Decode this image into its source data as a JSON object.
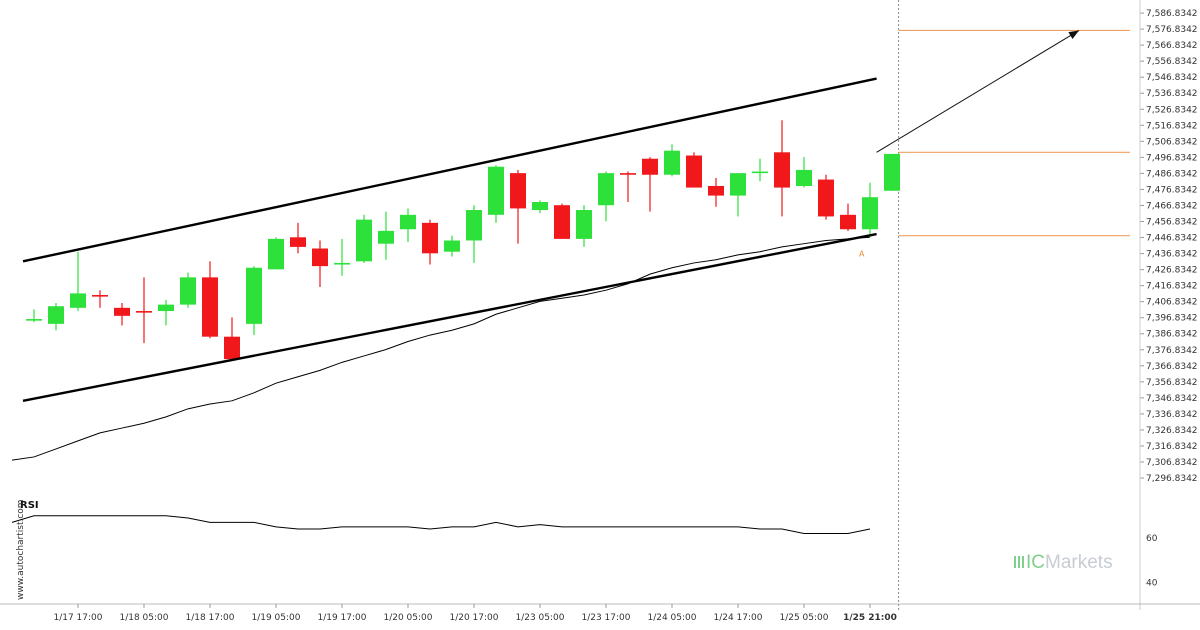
{
  "chart_data": [
    {
      "type": "candlestick",
      "y_ticks": [
        "7,586.8342",
        "7,576.8342",
        "7,566.8342",
        "7,556.8342",
        "7,546.8342",
        "7,536.8342",
        "7,526.8342",
        "7,516.8342",
        "7,506.8342",
        "7,496.8342",
        "7,486.8342",
        "7,476.8342",
        "7,466.8342",
        "7,456.8342",
        "7,446.8342",
        "7,436.8342",
        "7,426.8342",
        "7,416.8342",
        "7,406.8342",
        "7,396.8342",
        "7,386.8342",
        "7,376.8342",
        "7,366.8342",
        "7,356.8342",
        "7,346.8342",
        "7,336.8342",
        "7,326.8342",
        "7,316.8342",
        "7,306.8342",
        "7,296.8342"
      ],
      "ylim": [
        7290,
        7590
      ],
      "x_ticks": [
        {
          "label": "1/17 17:00",
          "i": 2
        },
        {
          "label": "1/18 05:00",
          "i": 5
        },
        {
          "label": "1/18 17:00",
          "i": 8
        },
        {
          "label": "1/19 05:00",
          "i": 11
        },
        {
          "label": "1/19 17:00",
          "i": 14
        },
        {
          "label": "1/20 05:00",
          "i": 17
        },
        {
          "label": "1/20 17:00",
          "i": 20
        },
        {
          "label": "1/23 05:00",
          "i": 23
        },
        {
          "label": "1/23 17:00",
          "i": 26
        },
        {
          "label": "1/24 05:00",
          "i": 29
        },
        {
          "label": "1/24 17:00",
          "i": 32
        },
        {
          "label": "1/25 05:00",
          "i": 35
        },
        {
          "label": "1/25 21:00",
          "i": 38
        }
      ],
      "candles": [
        {
          "o": 7395,
          "h": 7402,
          "l": 7394,
          "c": 7396
        },
        {
          "o": 7393,
          "h": 7406,
          "l": 7389,
          "c": 7404
        },
        {
          "o": 7403,
          "h": 7438,
          "l": 7401,
          "c": 7412
        },
        {
          "o": 7411,
          "h": 7414,
          "l": 7403,
          "c": 7410
        },
        {
          "o": 7403,
          "h": 7406,
          "l": 7392,
          "c": 7398
        },
        {
          "o": 7401,
          "h": 7422,
          "l": 7381,
          "c": 7400
        },
        {
          "o": 7401,
          "h": 7408,
          "l": 7392,
          "c": 7405
        },
        {
          "o": 7405,
          "h": 7425,
          "l": 7403,
          "c": 7422
        },
        {
          "o": 7422,
          "h": 7432,
          "l": 7384,
          "c": 7385
        },
        {
          "o": 7385,
          "h": 7397,
          "l": 7370,
          "c": 7371
        },
        {
          "o": 7393,
          "h": 7429,
          "l": 7386,
          "c": 7428
        },
        {
          "o": 7427,
          "h": 7447,
          "l": 7427,
          "c": 7446
        },
        {
          "o": 7447,
          "h": 7456,
          "l": 7437,
          "c": 7441
        },
        {
          "o": 7440,
          "h": 7445,
          "l": 7416,
          "c": 7429
        },
        {
          "o": 7430,
          "h": 7446,
          "l": 7423,
          "c": 7431
        },
        {
          "o": 7432,
          "h": 7461,
          "l": 7431,
          "c": 7458
        },
        {
          "o": 7443,
          "h": 7463,
          "l": 7433,
          "c": 7451
        },
        {
          "o": 7452,
          "h": 7465,
          "l": 7444,
          "c": 7461
        },
        {
          "o": 7456,
          "h": 7458,
          "l": 7430,
          "c": 7437
        },
        {
          "o": 7438,
          "h": 7448,
          "l": 7435,
          "c": 7445
        },
        {
          "o": 7445,
          "h": 7467,
          "l": 7431,
          "c": 7464
        },
        {
          "o": 7461,
          "h": 7492,
          "l": 7456,
          "c": 7491
        },
        {
          "o": 7487,
          "h": 7489,
          "l": 7443,
          "c": 7465
        },
        {
          "o": 7464,
          "h": 7470,
          "l": 7462,
          "c": 7469
        },
        {
          "o": 7467,
          "h": 7468,
          "l": 7446,
          "c": 7446
        },
        {
          "o": 7446,
          "h": 7467,
          "l": 7441,
          "c": 7464
        },
        {
          "o": 7467,
          "h": 7488,
          "l": 7457,
          "c": 7487
        },
        {
          "o": 7487,
          "h": 7488,
          "l": 7469,
          "c": 7486
        },
        {
          "o": 7496,
          "h": 7497,
          "l": 7463,
          "c": 7486
        },
        {
          "o": 7486,
          "h": 7505,
          "l": 7485,
          "c": 7501
        },
        {
          "o": 7498,
          "h": 7500,
          "l": 7478,
          "c": 7478
        },
        {
          "o": 7479,
          "h": 7484,
          "l": 7466,
          "c": 7473
        },
        {
          "o": 7473,
          "h": 7487,
          "l": 7460,
          "c": 7487
        },
        {
          "o": 7487,
          "h": 7496,
          "l": 7482,
          "c": 7488
        },
        {
          "o": 7500,
          "h": 7520,
          "l": 7460,
          "c": 7478
        },
        {
          "o": 7479,
          "h": 7497,
          "l": 7478,
          "c": 7489
        },
        {
          "o": 7483,
          "h": 7486,
          "l": 7458,
          "c": 7460
        },
        {
          "o": 7461,
          "h": 7468,
          "l": 7451,
          "c": 7452
        },
        {
          "o": 7452,
          "h": 7481,
          "l": 7447,
          "c": 7472
        },
        {
          "o": 7476,
          "h": 7499,
          "l": 7476,
          "c": 7499
        }
      ],
      "moving_average": [
        7310,
        7315,
        7320,
        7325,
        7328,
        7331,
        7335,
        7340,
        7343,
        7345,
        7350,
        7356,
        7360,
        7364,
        7369,
        7373,
        7377,
        7382,
        7386,
        7389,
        7393,
        7399,
        7403,
        7407,
        7409,
        7411,
        7414,
        7418,
        7424,
        7428,
        7431,
        7433,
        7436,
        7438,
        7441,
        7443,
        7445,
        7446,
        7447
      ],
      "resistance_line": {
        "start": [
          -0.5,
          7432
        ],
        "end": [
          38.3,
          7546
        ]
      },
      "support_line": {
        "start": [
          -0.5,
          7345
        ],
        "end": [
          38.3,
          7449
        ]
      },
      "levels": [
        7576,
        7500,
        7448
      ],
      "projection": {
        "from": [
          38.3,
          7500
        ],
        "to": [
          47.5,
          7576
        ]
      },
      "annotation": "A",
      "annotation_at": [
        37.5,
        7440
      ],
      "colors": {
        "up": "#2ee03a",
        "down": "#f0181b",
        "level": "#f0a060",
        "trend": "#000000"
      }
    },
    {
      "type": "line",
      "label": "RSI",
      "y_ticks": [
        60,
        40
      ],
      "ylim": [
        32,
        78
      ],
      "values": [
        67,
        70,
        70,
        70,
        70,
        70,
        70,
        70,
        69,
        67,
        67,
        67,
        65,
        64,
        64,
        65,
        65,
        65,
        65,
        64,
        65,
        65,
        67,
        65,
        66,
        65,
        65,
        65,
        65,
        65,
        65,
        65,
        65,
        65,
        64,
        64,
        62,
        62,
        62,
        64
      ]
    }
  ],
  "watermark": "www.autochartist.com",
  "logo": {
    "prefix": "IC",
    "suffix": "Markets"
  }
}
